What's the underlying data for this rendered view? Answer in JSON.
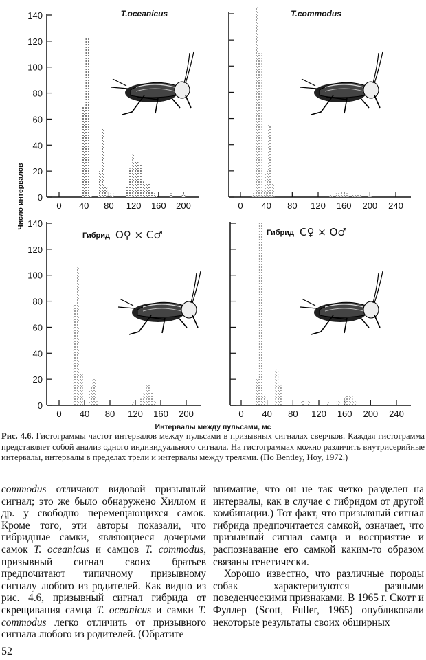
{
  "figure": {
    "y_axis_label": "Число интервалов",
    "x_axis_label": "Интервалы между пульсами, мс",
    "caption_label": "Рис. 4.6.",
    "caption_text": "Гистограммы частот интервалов между пульсами в призывных сигналах сверчков. Каждая гистограмма представляет собой анализ одного индивидуального сигнала. На гистограммах можно различить внутрисерийные интервалы, интервалы в пределах трели и интервалы между трелями. (По Bentley, Hoy, 1972.)"
  },
  "chart_data": [
    {
      "type": "bar",
      "title": "T.oceanicus",
      "xlim": [
        0,
        220
      ],
      "ylim": [
        0,
        140
      ],
      "xticks": [
        "0",
        "40",
        "80",
        "120",
        "160",
        "200"
      ],
      "yticks": [
        "0",
        "20",
        "40",
        "60",
        "80",
        "100",
        "120",
        "140"
      ],
      "x": [
        40,
        45,
        50,
        65,
        70,
        75,
        85,
        110,
        115,
        120,
        125,
        130,
        135,
        140,
        145,
        150,
        155,
        180,
        200
      ],
      "values": [
        70,
        123,
        1,
        20,
        53,
        8,
        3,
        8,
        22,
        33,
        27,
        26,
        12,
        10,
        10,
        4,
        3,
        3,
        2
      ],
      "color": "#555555"
    },
    {
      "type": "bar",
      "title": "T.commodus",
      "xlim": [
        0,
        260
      ],
      "ylim": [
        0,
        140
      ],
      "xticks": [
        "0",
        "40",
        "80",
        "120",
        "160",
        "200",
        "240"
      ],
      "x": [
        20,
        25,
        30,
        35,
        40,
        45,
        50,
        140,
        150,
        155,
        160,
        165,
        175,
        180,
        185,
        200
      ],
      "values": [
        3,
        145,
        110,
        5,
        20,
        55,
        10,
        2,
        3,
        4,
        4,
        3,
        2,
        2,
        2,
        1
      ],
      "color": "#8a8a8a"
    },
    {
      "type": "bar",
      "title": "Гибрид",
      "cross": [
        "О♀",
        "×",
        "С♂"
      ],
      "xlim": [
        0,
        220
      ],
      "ylim": [
        0,
        140
      ],
      "xticks": [
        "0",
        "40",
        "80",
        "120",
        "160",
        "200"
      ],
      "yticks": [
        "0",
        "20",
        "40",
        "60",
        "80",
        "100",
        "120",
        "140"
      ],
      "x": [
        25,
        30,
        35,
        50,
        55,
        60,
        115,
        130,
        135,
        140,
        145,
        150
      ],
      "values": [
        78,
        106,
        24,
        14,
        20,
        3,
        2,
        5,
        10,
        16,
        10,
        3
      ],
      "color": "#8a8a8a"
    },
    {
      "type": "bar",
      "title": "Гибрид",
      "cross": [
        "С♀",
        "×",
        "О♂"
      ],
      "xlim": [
        0,
        260
      ],
      "ylim": [
        0,
        140
      ],
      "xticks": [
        "0",
        "40",
        "80",
        "120",
        "160",
        "200",
        "240"
      ],
      "x": [
        25,
        30,
        35,
        55,
        60,
        95,
        105,
        135,
        150,
        160,
        165,
        170,
        175
      ],
      "values": [
        20,
        140,
        8,
        27,
        15,
        4,
        3,
        2,
        3,
        6,
        8,
        7,
        3
      ],
      "color": "#9a9a9a"
    }
  ],
  "body": {
    "left_column": [
      {
        "it": "commodus"
      },
      {
        "t": " отличают видовой призывный сигнал; это же было обнаружено Хиллом и др. у свободно перемещающихся самок. Кроме того, эти авторы показали, что гибридные самки, являющиеся дочерьми самок "
      },
      {
        "it": "T. oceanicus"
      },
      {
        "t": " и самцов "
      },
      {
        "it": "T. commodus"
      },
      {
        "t": ", призывный сигнал своих братьев предпочитают типичному призывному сигналу любого из родителей. Как видно из рис. 4.6, призывный сигнал гибрида от скрещивания самца "
      },
      {
        "it": "T. oceanicus"
      },
      {
        "t": " и самки "
      },
      {
        "it": "T. commodus"
      },
      {
        "t": " легко отличить от призывного сигнала любого из родителей. (Обратите"
      }
    ],
    "right_para1": "внимание, что он не так четко разделен на интервалы, как в случае с гибридом от другой комбинации.) Тот факт, что призывный сигнал гибрида предпочитается самкой, означает, что призывный сигнал самца и восприятие и распознавание его самкой каким-то образом связаны генетически.",
    "right_para2": "Хорошо известно, что различные породы собак характеризуются разными поведенческими признаками. В 1965 г. Скотт и Фуллер (Scott, Fuller, 1965) опубликовали некоторые результаты своих обширных"
  },
  "page_number": "52"
}
